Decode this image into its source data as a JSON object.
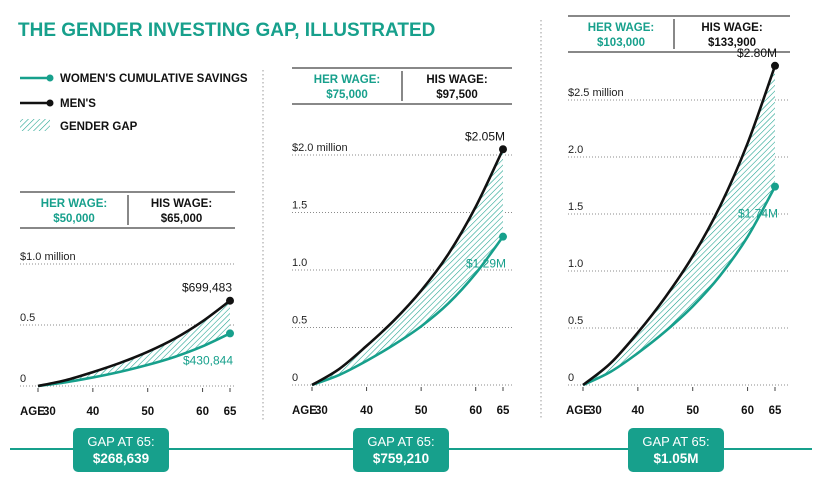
{
  "title": "THE GENDER INVESTING GAP, ILLUSTRATED",
  "colors": {
    "women": "#17a08c",
    "men": "#111111",
    "gap": "#17a08c",
    "grid": "#555555",
    "badge": "#17a08c"
  },
  "legend": [
    {
      "label": "WOMEN'S CUMULATIVE SAVINGS",
      "kind": "women"
    },
    {
      "label": "MEN'S",
      "kind": "men"
    },
    {
      "label": "GENDER GAP",
      "kind": "gap"
    }
  ],
  "labels": {
    "age_prefix": "AGE",
    "her_wage": "HER WAGE:",
    "his_wage": "HIS WAGE:",
    "gap_at": "GAP AT 65:"
  },
  "chart_data": [
    {
      "type": "area",
      "her_wage": "$50,000",
      "his_wage": "$65,000",
      "ylim": [
        0,
        1.0
      ],
      "yticks": [
        {
          "v": 0,
          "label": "0"
        },
        {
          "v": 0.5,
          "label": "0.5"
        },
        {
          "v": 1.0,
          "label": "$1.0 million"
        }
      ],
      "xticks": [
        {
          "v": 30,
          "label": "30"
        },
        {
          "v": 40,
          "label": "40"
        },
        {
          "v": 50,
          "label": "50"
        },
        {
          "v": 60,
          "label": "60"
        },
        {
          "v": 65,
          "label": "65"
        }
      ],
      "x": [
        30,
        35,
        40,
        45,
        50,
        55,
        60,
        65
      ],
      "series": [
        {
          "name": "MEN'S",
          "values": [
            0,
            0.047,
            0.114,
            0.19,
            0.28,
            0.39,
            0.53,
            0.699
          ]
        },
        {
          "name": "WOMEN'S CUMULATIVE SAVINGS",
          "values": [
            0,
            0.03,
            0.07,
            0.117,
            0.173,
            0.24,
            0.325,
            0.431
          ]
        }
      ],
      "end_label_men": "$699,483",
      "end_label_women": "$430,844",
      "gap": "$268,639"
    },
    {
      "type": "area",
      "her_wage": "$75,000",
      "his_wage": "$97,500",
      "ylim": [
        0,
        2.0
      ],
      "yticks": [
        {
          "v": 0,
          "label": "0"
        },
        {
          "v": 0.5,
          "label": "0.5"
        },
        {
          "v": 1.0,
          "label": "1.0"
        },
        {
          "v": 1.5,
          "label": "1.5"
        },
        {
          "v": 2.0,
          "label": "$2.0 million"
        }
      ],
      "xticks": [
        {
          "v": 30,
          "label": "30"
        },
        {
          "v": 40,
          "label": "40"
        },
        {
          "v": 50,
          "label": "50"
        },
        {
          "v": 60,
          "label": "60"
        },
        {
          "v": 65,
          "label": "65"
        }
      ],
      "x": [
        30,
        35,
        40,
        45,
        50,
        55,
        60,
        65
      ],
      "series": [
        {
          "name": "MEN'S",
          "values": [
            0,
            0.14,
            0.34,
            0.56,
            0.82,
            1.14,
            1.55,
            2.05
          ]
        },
        {
          "name": "WOMEN'S CUMULATIVE SAVINGS",
          "values": [
            0,
            0.088,
            0.21,
            0.35,
            0.51,
            0.71,
            0.97,
            1.29
          ]
        }
      ],
      "end_label_men": "$2.05M",
      "end_label_women": "$1.29M",
      "gap": "$759,210"
    },
    {
      "type": "area",
      "her_wage": "$103,000",
      "his_wage": "$133,900",
      "ylim": [
        0,
        2.5
      ],
      "yticks": [
        {
          "v": 0,
          "label": "0"
        },
        {
          "v": 0.5,
          "label": "0.5"
        },
        {
          "v": 1.0,
          "label": "1.0"
        },
        {
          "v": 1.5,
          "label": "1.5"
        },
        {
          "v": 2.0,
          "label": "2.0"
        },
        {
          "v": 2.5,
          "label": "$2.5 million"
        }
      ],
      "xticks": [
        {
          "v": 30,
          "label": "30"
        },
        {
          "v": 40,
          "label": "40"
        },
        {
          "v": 50,
          "label": "50"
        },
        {
          "v": 60,
          "label": "60"
        },
        {
          "v": 65,
          "label": "65"
        }
      ],
      "x": [
        30,
        35,
        40,
        45,
        50,
        55,
        60,
        65
      ],
      "series": [
        {
          "name": "MEN'S",
          "values": [
            0,
            0.19,
            0.46,
            0.77,
            1.13,
            1.57,
            2.12,
            2.8
          ]
        },
        {
          "name": "WOMEN'S CUMULATIVE SAVINGS",
          "values": [
            0,
            0.115,
            0.28,
            0.47,
            0.69,
            0.96,
            1.3,
            1.74
          ]
        }
      ],
      "end_label_men": "$2.80M",
      "end_label_women": "$1.74M",
      "gap": "$1.05M"
    }
  ]
}
